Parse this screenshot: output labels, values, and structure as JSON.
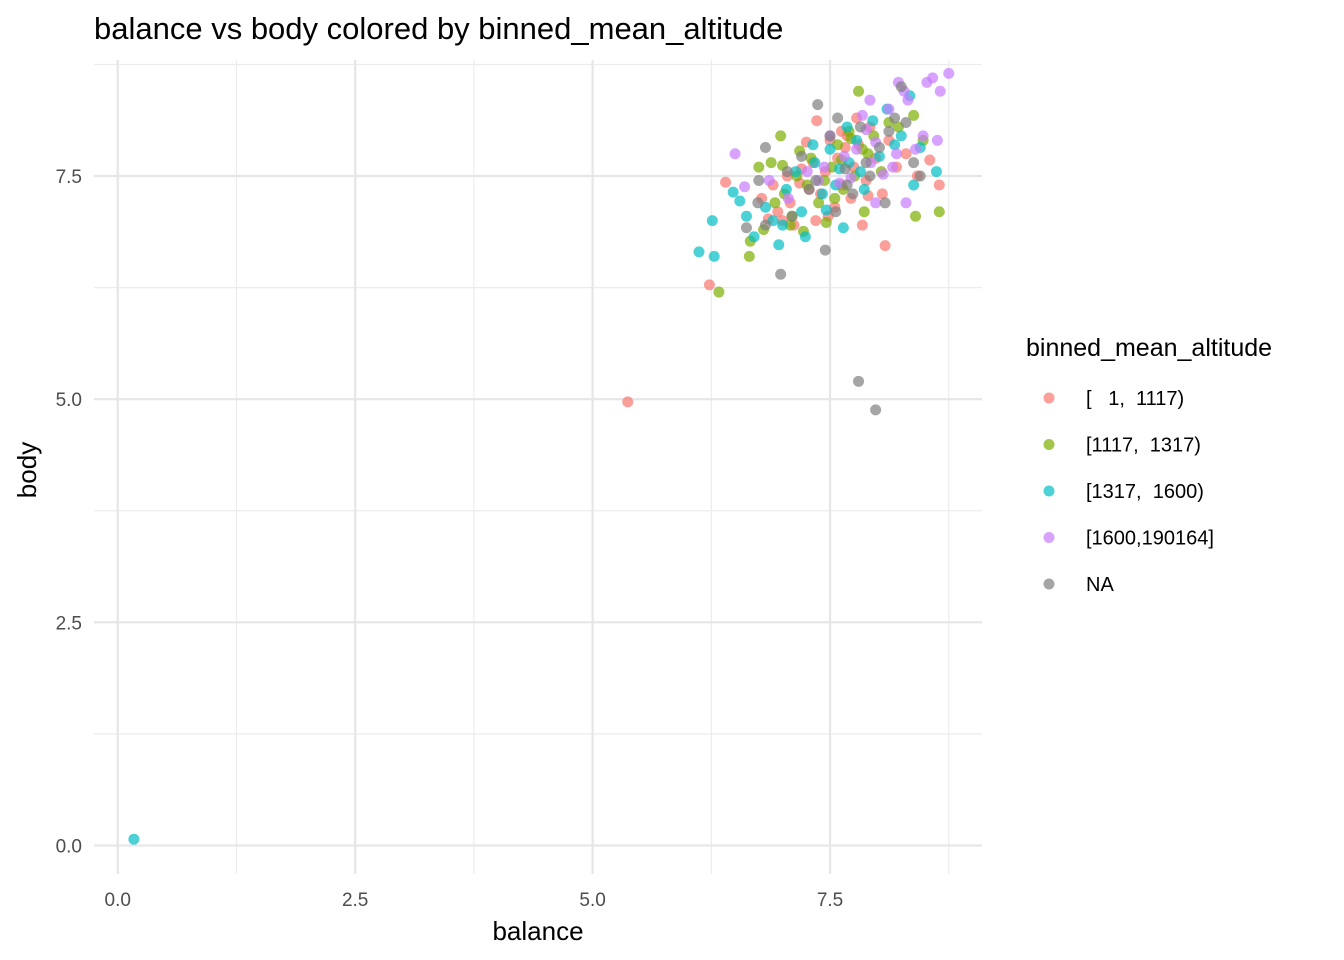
{
  "chart_data": {
    "type": "scatter",
    "title": "balance vs body colored by binned_mean_altitude",
    "xlabel": "balance",
    "ylabel": "body",
    "xlim": [
      -0.25,
      9.1
    ],
    "ylim": [
      -0.32,
      8.8
    ],
    "x_ticks": [
      0.0,
      2.5,
      5.0,
      7.5
    ],
    "x_tick_labels": [
      "0.0",
      "2.5",
      "5.0",
      "7.5"
    ],
    "y_ticks": [
      0.0,
      2.5,
      5.0,
      7.5
    ],
    "y_tick_labels": [
      "0.0",
      "2.5",
      "5.0",
      "7.5"
    ],
    "grid": true,
    "legend": {
      "title": "binned_mean_altitude",
      "position": "right"
    },
    "series": [
      {
        "name": "[   1,  1117)",
        "color": "#F8766D",
        "points": [
          [
            5.37,
            4.97
          ],
          [
            6.23,
            6.28
          ],
          [
            6.4,
            7.43
          ],
          [
            6.78,
            7.25
          ],
          [
            6.9,
            7.4
          ],
          [
            7.0,
            7.0
          ],
          [
            7.08,
            7.2
          ],
          [
            7.18,
            7.42
          ],
          [
            7.25,
            7.88
          ],
          [
            7.32,
            7.65
          ],
          [
            7.36,
            8.12
          ],
          [
            7.4,
            7.3
          ],
          [
            7.45,
            7.55
          ],
          [
            7.5,
            7.9
          ],
          [
            7.55,
            7.15
          ],
          [
            7.58,
            7.7
          ],
          [
            7.62,
            7.4
          ],
          [
            7.68,
            7.95
          ],
          [
            7.72,
            7.25
          ],
          [
            7.75,
            7.6
          ],
          [
            7.8,
            7.85
          ],
          [
            7.84,
            6.95
          ],
          [
            7.88,
            7.45
          ],
          [
            7.92,
            8.05
          ],
          [
            7.98,
            7.7
          ],
          [
            8.05,
            7.3
          ],
          [
            8.08,
            6.72
          ],
          [
            8.12,
            7.9
          ],
          [
            8.2,
            7.6
          ],
          [
            8.3,
            7.75
          ],
          [
            8.42,
            7.5
          ],
          [
            8.55,
            7.68
          ],
          [
            8.65,
            7.4
          ],
          [
            6.95,
            7.1
          ],
          [
            7.12,
            6.95
          ],
          [
            7.28,
            7.35
          ],
          [
            7.48,
            7.05
          ],
          [
            7.66,
            7.82
          ],
          [
            7.78,
            8.15
          ],
          [
            7.2,
            7.58
          ],
          [
            7.05,
            7.5
          ],
          [
            6.85,
            7.02
          ],
          [
            7.35,
            7.0
          ],
          [
            7.62,
            8.0
          ],
          [
            7.9,
            7.28
          ]
        ]
      },
      {
        "name": "[1117,  1317)",
        "color": "#7CAE00",
        "points": [
          [
            6.33,
            6.2
          ],
          [
            6.65,
            6.6
          ],
          [
            6.66,
            6.77
          ],
          [
            6.75,
            7.6
          ],
          [
            6.88,
            7.65
          ],
          [
            6.98,
            7.95
          ],
          [
            7.02,
            7.3
          ],
          [
            7.1,
            7.05
          ],
          [
            7.15,
            7.5
          ],
          [
            7.22,
            6.88
          ],
          [
            7.3,
            7.7
          ],
          [
            7.38,
            7.2
          ],
          [
            7.44,
            7.45
          ],
          [
            7.52,
            7.6
          ],
          [
            7.58,
            7.85
          ],
          [
            7.64,
            7.35
          ],
          [
            7.7,
            8.0
          ],
          [
            7.76,
            7.5
          ],
          [
            7.8,
            8.45
          ],
          [
            7.86,
            7.1
          ],
          [
            7.9,
            7.75
          ],
          [
            7.96,
            7.95
          ],
          [
            8.04,
            7.55
          ],
          [
            8.12,
            8.1
          ],
          [
            8.22,
            8.05
          ],
          [
            8.38,
            8.18
          ],
          [
            8.4,
            7.05
          ],
          [
            8.48,
            7.9
          ],
          [
            8.65,
            7.1
          ],
          [
            6.92,
            7.2
          ],
          [
            7.08,
            6.95
          ],
          [
            7.26,
            7.4
          ],
          [
            7.46,
            6.98
          ],
          [
            7.62,
            7.68
          ],
          [
            7.84,
            7.8
          ],
          [
            7.0,
            7.62
          ],
          [
            7.18,
            7.78
          ],
          [
            6.8,
            6.9
          ],
          [
            7.55,
            7.25
          ],
          [
            7.72,
            7.92
          ]
        ]
      },
      {
        "name": "[1317,  1600)",
        "color": "#00BFC4",
        "points": [
          [
            0.17,
            0.07
          ],
          [
            6.12,
            6.65
          ],
          [
            6.28,
            6.6
          ],
          [
            6.26,
            7.0
          ],
          [
            6.48,
            7.32
          ],
          [
            6.55,
            7.22
          ],
          [
            6.62,
            7.05
          ],
          [
            6.7,
            6.82
          ],
          [
            6.82,
            7.15
          ],
          [
            6.96,
            6.73
          ],
          [
            7.04,
            7.35
          ],
          [
            7.14,
            7.55
          ],
          [
            7.24,
            6.82
          ],
          [
            7.34,
            7.65
          ],
          [
            7.42,
            7.3
          ],
          [
            7.5,
            7.8
          ],
          [
            7.56,
            7.4
          ],
          [
            7.64,
            6.92
          ],
          [
            7.7,
            7.65
          ],
          [
            7.78,
            7.9
          ],
          [
            7.86,
            7.35
          ],
          [
            7.95,
            8.12
          ],
          [
            8.02,
            7.72
          ],
          [
            8.1,
            8.25
          ],
          [
            8.18,
            7.85
          ],
          [
            8.25,
            7.95
          ],
          [
            8.34,
            8.4
          ],
          [
            8.38,
            7.4
          ],
          [
            8.45,
            7.82
          ],
          [
            8.62,
            7.55
          ],
          [
            6.9,
            7.0
          ],
          [
            7.2,
            7.1
          ],
          [
            7.46,
            7.12
          ],
          [
            7.6,
            7.58
          ],
          [
            7.82,
            7.55
          ],
          [
            7.0,
            6.95
          ],
          [
            7.32,
            7.85
          ],
          [
            7.68,
            8.05
          ]
        ]
      },
      {
        "name": "[1600,190164]",
        "color": "#C77CFF",
        "points": [
          [
            6.5,
            7.75
          ],
          [
            6.6,
            7.38
          ],
          [
            6.86,
            7.45
          ],
          [
            7.06,
            7.25
          ],
          [
            7.26,
            7.55
          ],
          [
            7.44,
            7.6
          ],
          [
            7.6,
            7.42
          ],
          [
            7.72,
            7.48
          ],
          [
            7.78,
            7.8
          ],
          [
            7.84,
            8.18
          ],
          [
            7.88,
            8.02
          ],
          [
            7.93,
            7.65
          ],
          [
            7.98,
            7.88
          ],
          [
            8.06,
            7.52
          ],
          [
            8.12,
            8.25
          ],
          [
            8.16,
            7.6
          ],
          [
            8.22,
            8.55
          ],
          [
            8.28,
            8.45
          ],
          [
            8.32,
            8.35
          ],
          [
            8.4,
            7.8
          ],
          [
            8.48,
            7.95
          ],
          [
            8.52,
            8.55
          ],
          [
            8.58,
            8.6
          ],
          [
            8.66,
            8.45
          ],
          [
            8.75,
            8.65
          ],
          [
            8.63,
            7.9
          ],
          [
            8.3,
            7.2
          ],
          [
            7.65,
            7.72
          ],
          [
            7.98,
            7.2
          ],
          [
            8.2,
            7.75
          ],
          [
            7.5,
            7.95
          ],
          [
            7.38,
            7.45
          ],
          [
            7.92,
            8.35
          ]
        ]
      },
      {
        "name": "NA",
        "color": "#7F7F7F",
        "points": [
          [
            6.62,
            6.92
          ],
          [
            6.74,
            7.2
          ],
          [
            6.82,
            6.95
          ],
          [
            6.82,
            7.82
          ],
          [
            6.98,
            6.4
          ],
          [
            7.05,
            7.55
          ],
          [
            7.2,
            7.72
          ],
          [
            7.35,
            7.45
          ],
          [
            7.37,
            8.3
          ],
          [
            7.45,
            6.67
          ],
          [
            7.5,
            7.95
          ],
          [
            7.58,
            8.15
          ],
          [
            7.66,
            7.58
          ],
          [
            7.74,
            7.3
          ],
          [
            7.8,
            5.2
          ],
          [
            7.82,
            8.05
          ],
          [
            7.88,
            7.65
          ],
          [
            7.98,
            4.88
          ],
          [
            8.02,
            7.82
          ],
          [
            8.08,
            7.2
          ],
          [
            8.12,
            8.0
          ],
          [
            8.18,
            8.15
          ],
          [
            8.25,
            8.5
          ],
          [
            8.38,
            7.65
          ],
          [
            8.45,
            7.5
          ],
          [
            7.1,
            7.05
          ],
          [
            7.28,
            7.35
          ],
          [
            7.56,
            7.1
          ],
          [
            7.92,
            7.5
          ],
          [
            6.75,
            7.45
          ],
          [
            8.3,
            8.1
          ],
          [
            7.68,
            7.4
          ]
        ]
      }
    ]
  }
}
